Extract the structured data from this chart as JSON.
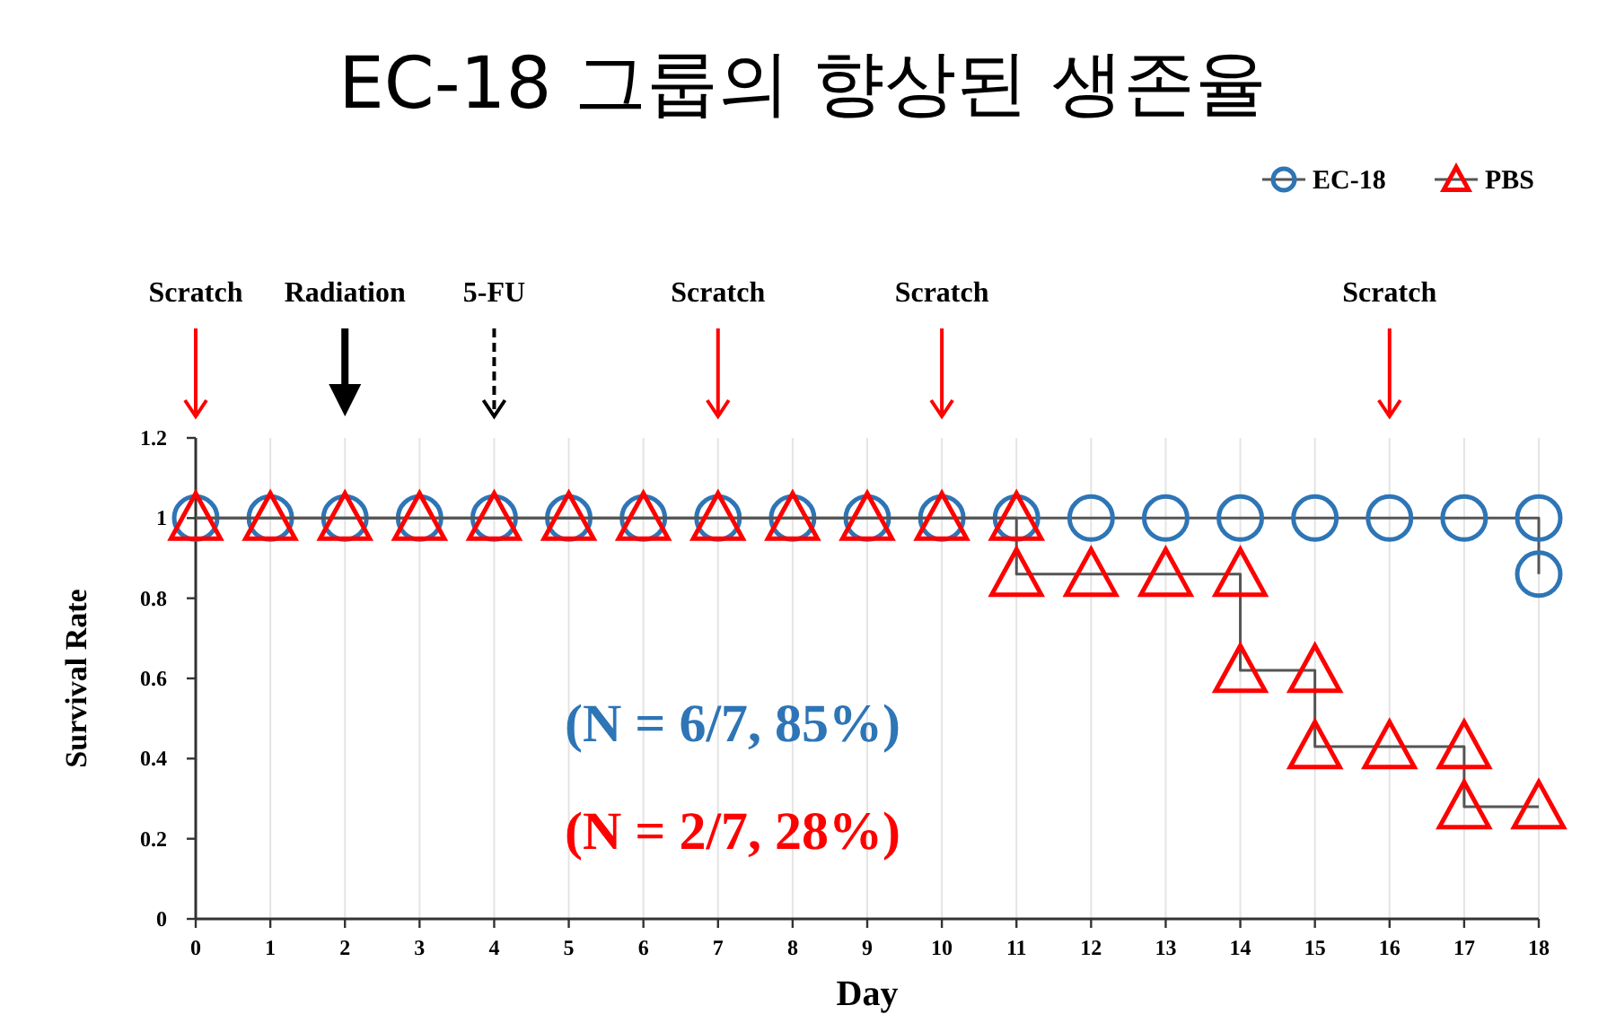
{
  "chart_data": {
    "type": "line",
    "title": "EC-18 그룹의 향상된 생존율",
    "xlabel": "Day",
    "ylabel": "Survival Rate",
    "xlim": [
      0,
      18
    ],
    "xticks": [
      0,
      1,
      2,
      3,
      4,
      5,
      6,
      7,
      8,
      9,
      10,
      11,
      12,
      13,
      14,
      15,
      16,
      17,
      18
    ],
    "ylim": [
      0,
      1.2
    ],
    "yticks": [
      0,
      0.2,
      0.4,
      0.6,
      0.8,
      1,
      1.2
    ],
    "grid": "x",
    "legend": "top right",
    "series": [
      {
        "name": "EC-18",
        "color": "#2e75b6",
        "marker": "circle",
        "x": [
          0,
          1,
          2,
          3,
          4,
          5,
          6,
          7,
          8,
          9,
          10,
          11,
          12,
          13,
          14,
          15,
          16,
          17,
          18,
          18
        ],
        "values": [
          1,
          1,
          1,
          1,
          1,
          1,
          1,
          1,
          1,
          1,
          1,
          1,
          1,
          1,
          1,
          1,
          1,
          1,
          1,
          0.86
        ]
      },
      {
        "name": "PBS",
        "color": "#ff0000",
        "marker": "triangle",
        "x": [
          0,
          1,
          2,
          3,
          4,
          5,
          6,
          7,
          8,
          9,
          10,
          11,
          11,
          12,
          13,
          14,
          14,
          15,
          15,
          16,
          17,
          17,
          18
        ],
        "values": [
          1,
          1,
          1,
          1,
          1,
          1,
          1,
          1,
          1,
          1,
          1,
          1,
          0.86,
          0.86,
          0.86,
          0.86,
          0.62,
          0.62,
          0.43,
          0.43,
          0.43,
          0.28,
          0.28
        ]
      }
    ],
    "annotations": [
      {
        "text": "Scratch",
        "x": 0
      },
      {
        "text": "Radiation",
        "x": 2
      },
      {
        "text": "5-FU",
        "x": 4
      },
      {
        "text": "Scratch",
        "x": 7
      },
      {
        "text": "Scratch",
        "x": 10
      },
      {
        "text": "Scratch",
        "x": 16
      },
      "(N = 6/7, 85%)",
      "(N = 2/7, 28%)"
    ]
  }
}
